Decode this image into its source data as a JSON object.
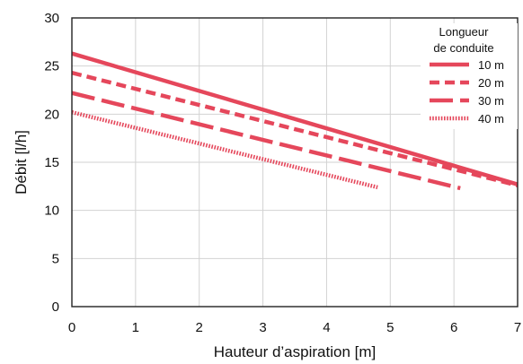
{
  "chart_data": {
    "type": "line",
    "title": "",
    "xlabel": "Hauteur d’aspiration [m]",
    "ylabel": "Débit [l/h]",
    "xlim": [
      0,
      7
    ],
    "ylim": [
      0,
      30
    ],
    "x_ticks": [
      "0",
      "1",
      "2",
      "3",
      "4",
      "5",
      "6",
      "7"
    ],
    "y_ticks": [
      "0",
      "5",
      "10",
      "15",
      "20",
      "25",
      "30"
    ],
    "grid": true,
    "legend_title": [
      "Longueur",
      "de conduite"
    ],
    "legend_position": "top-right",
    "color": "#e5475b",
    "series": [
      {
        "name": "10 m",
        "style": "solid",
        "x": [
          0,
          7.0
        ],
        "y": [
          26.3,
          12.7
        ]
      },
      {
        "name": "20 m",
        "style": "dashed",
        "x": [
          0,
          7.0
        ],
        "y": [
          24.3,
          12.6
        ]
      },
      {
        "name": "30 m",
        "style": "longdash",
        "x": [
          0,
          6.1
        ],
        "y": [
          22.2,
          12.3
        ]
      },
      {
        "name": "40 m",
        "style": "dotted",
        "x": [
          0,
          4.8
        ],
        "y": [
          20.2,
          12.4
        ]
      }
    ]
  }
}
